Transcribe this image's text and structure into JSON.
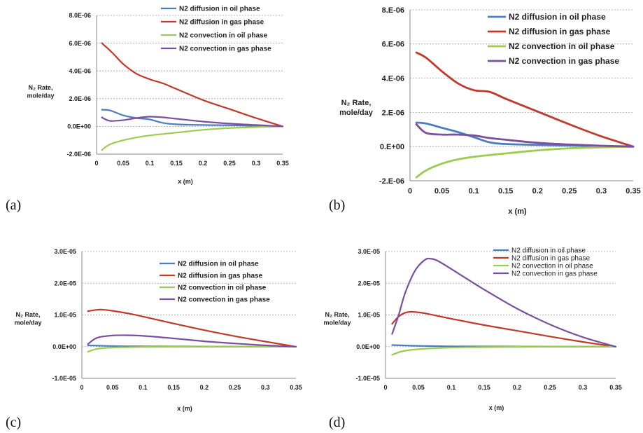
{
  "figure": {
    "panels": [
      {
        "label": "(a)"
      },
      {
        "label": "(b)"
      },
      {
        "label": "(c)"
      },
      {
        "label": "(d)"
      }
    ]
  },
  "colors": {
    "oil_diffusion": "#4a7ebf",
    "gas_diffusion": "#c0392b",
    "oil_convection": "#9bcb4f",
    "gas_convection": "#7b4fa0",
    "grid": "#a0a0a0",
    "axis": "#888888"
  },
  "chart_data": [
    {
      "panel": "(a)",
      "type": "line",
      "xlabel": "x (m)",
      "ylabel": [
        "N₂ Rate,",
        "mole/day"
      ],
      "xlim": [
        0,
        0.35
      ],
      "ylim": [
        -2e-06,
        8e-06
      ],
      "xticks": [
        0,
        0.05,
        0.1,
        0.15,
        0.2,
        0.25,
        0.3,
        0.35
      ],
      "xtick_labels": [
        "0",
        "0.05",
        "0.1",
        "0.15",
        "0.2",
        "0.25",
        "0.3",
        "0.35"
      ],
      "yticks": [
        -2e-06,
        0,
        2e-06,
        4e-06,
        6e-06,
        8e-06
      ],
      "ytick_labels": [
        "-2.0E-06",
        "0.0E+00",
        "2.0E-06",
        "4.0E-06",
        "6.0E-06",
        "8.0E-06"
      ],
      "grid": "horizontal dotted",
      "legend_position": "top-right",
      "series": [
        {
          "name": "N2 diffusion in oil phase",
          "x": [
            0.01,
            0.025,
            0.05,
            0.075,
            0.1,
            0.125,
            0.15,
            0.2,
            0.25,
            0.3,
            0.35
          ],
          "values": [
            1.2e-06,
            1.15e-06,
            8e-07,
            6e-07,
            5e-07,
            2.5e-07,
            1.5e-07,
            1e-07,
            8e-08,
            4e-08,
            0
          ]
        },
        {
          "name": "N2 diffusion in gas phase",
          "x": [
            0.01,
            0.03,
            0.05,
            0.075,
            0.1,
            0.125,
            0.15,
            0.2,
            0.25,
            0.3,
            0.35
          ],
          "values": [
            6e-06,
            5.3e-06,
            4.5e-06,
            3.8e-06,
            3.4e-06,
            3.1e-06,
            2.7e-06,
            1.9e-06,
            1.25e-06,
            6e-07,
            0
          ]
        },
        {
          "name": "N2 convection in oil phase",
          "x": [
            0.01,
            0.025,
            0.05,
            0.075,
            0.1,
            0.15,
            0.2,
            0.25,
            0.3,
            0.35
          ],
          "values": [
            -1.7e-06,
            -1.3e-06,
            -1e-06,
            -8e-07,
            -6.5e-07,
            -4.5e-07,
            -2.5e-07,
            -1.2e-07,
            -5e-08,
            0
          ]
        },
        {
          "name": "N2 convection in gas phase",
          "x": [
            0.01,
            0.025,
            0.05,
            0.075,
            0.1,
            0.125,
            0.15,
            0.2,
            0.25,
            0.3,
            0.35
          ],
          "values": [
            6.5e-07,
            4e-07,
            4.5e-07,
            6e-07,
            7e-07,
            6.5e-07,
            5.5e-07,
            3.5e-07,
            2e-07,
            1e-07,
            0
          ]
        }
      ]
    },
    {
      "panel": "(b)",
      "type": "line",
      "xlabel": "x (m)",
      "ylabel": [
        "N₂ Rate,",
        "mole/day"
      ],
      "xlim": [
        0,
        0.35
      ],
      "ylim": [
        -2e-06,
        8e-06
      ],
      "xticks": [
        0,
        0.05,
        0.1,
        0.15,
        0.2,
        0.25,
        0.3,
        0.35
      ],
      "xtick_labels": [
        "0",
        "0.05",
        "0.1",
        "0.15",
        "0.2",
        "0.25",
        "0.3",
        "0.35"
      ],
      "yticks": [
        -2e-06,
        0,
        2e-06,
        4e-06,
        6e-06,
        8e-06
      ],
      "ytick_labels": [
        "-2.E-06",
        "0.E+00",
        "2.E-06",
        "4.E-06",
        "6.E-06",
        "8.E-06"
      ],
      "grid": "horizontal dotted",
      "legend_position": "top-right",
      "series": [
        {
          "name": "N2 diffusion in oil phase",
          "x": [
            0.01,
            0.025,
            0.05,
            0.075,
            0.1,
            0.125,
            0.15,
            0.2,
            0.25,
            0.3,
            0.35
          ],
          "values": [
            1.4e-06,
            1.35e-06,
            1.1e-06,
            8.5e-07,
            5.5e-07,
            2.5e-07,
            1.5e-07,
            1e-07,
            6e-08,
            3e-08,
            0
          ]
        },
        {
          "name": "N2 diffusion in gas phase",
          "x": [
            0.01,
            0.025,
            0.05,
            0.075,
            0.1,
            0.125,
            0.15,
            0.2,
            0.25,
            0.3,
            0.35
          ],
          "values": [
            5.5e-06,
            5.2e-06,
            4.4e-06,
            3.7e-06,
            3.3e-06,
            3.2e-06,
            2.8e-06,
            2.05e-06,
            1.3e-06,
            6e-07,
            0
          ]
        },
        {
          "name": "N2 convection in oil phase",
          "x": [
            0.01,
            0.025,
            0.05,
            0.075,
            0.1,
            0.15,
            0.2,
            0.25,
            0.3,
            0.35
          ],
          "values": [
            -1.8e-06,
            -1.4e-06,
            -1e-06,
            -7.5e-07,
            -6e-07,
            -4e-07,
            -2.2e-07,
            -1e-07,
            -4e-08,
            0
          ]
        },
        {
          "name": "N2 convection in gas phase",
          "x": [
            0.01,
            0.025,
            0.05,
            0.075,
            0.1,
            0.125,
            0.15,
            0.2,
            0.25,
            0.3,
            0.35
          ],
          "values": [
            1.3e-06,
            8e-07,
            7e-07,
            7e-07,
            6.5e-07,
            5e-07,
            4e-07,
            2.2e-07,
            1.2e-07,
            5e-08,
            0
          ]
        }
      ]
    },
    {
      "panel": "(c)",
      "type": "line",
      "xlabel": "x (m)",
      "ylabel": [
        "N₂ Rate,",
        "mole/day"
      ],
      "xlim": [
        0,
        0.35
      ],
      "ylim": [
        -1e-05,
        3e-05
      ],
      "xticks": [
        0,
        0.05,
        0.1,
        0.15,
        0.2,
        0.25,
        0.3,
        0.35
      ],
      "xtick_labels": [
        "0",
        "0.05",
        "0.1",
        "0.15",
        "0.2",
        "0.25",
        "0.3",
        "0.35"
      ],
      "yticks": [
        -1e-05,
        0,
        1e-05,
        2e-05,
        3e-05
      ],
      "ytick_labels": [
        "-1.0E-05",
        "0.0E+00",
        "1.0E-05",
        "2.0E-05",
        "3.0E-05"
      ],
      "grid": "horizontal dotted",
      "legend_position": "top-right",
      "series": [
        {
          "name": "N2 diffusion in oil phase",
          "x": [
            0.01,
            0.05,
            0.1,
            0.15,
            0.2,
            0.25,
            0.3,
            0.35
          ],
          "values": [
            4e-07,
            2e-07,
            1e-07,
            6e-08,
            4e-08,
            2e-08,
            1e-08,
            0
          ]
        },
        {
          "name": "N2 diffusion in gas phase",
          "x": [
            0.01,
            0.03,
            0.05,
            0.075,
            0.1,
            0.15,
            0.2,
            0.25,
            0.3,
            0.35
          ],
          "values": [
            1.12e-05,
            1.17e-05,
            1.13e-05,
            1.05e-05,
            9.5e-06,
            7.3e-06,
            5.2e-06,
            3.3e-06,
            1.6e-06,
            0
          ]
        },
        {
          "name": "N2 convection in oil phase",
          "x": [
            0.01,
            0.025,
            0.05,
            0.1,
            0.15,
            0.2,
            0.25,
            0.3,
            0.35
          ],
          "values": [
            -1.6e-06,
            -7e-07,
            -3e-07,
            -1e-07,
            -5e-08,
            -3e-08,
            -2e-08,
            -1e-08,
            0
          ]
        },
        {
          "name": "N2 convection in gas phase",
          "x": [
            0.01,
            0.025,
            0.05,
            0.075,
            0.1,
            0.15,
            0.2,
            0.25,
            0.3,
            0.35
          ],
          "values": [
            8e-07,
            2.8e-06,
            3.5e-06,
            3.6e-06,
            3.4e-06,
            2.6e-06,
            1.7e-06,
            1e-06,
            4e-07,
            0
          ]
        }
      ]
    },
    {
      "panel": "(d)",
      "type": "line",
      "xlabel": "x (m)",
      "ylabel": [
        "N₂ Rate,",
        "mole/day"
      ],
      "xlim": [
        0,
        0.35
      ],
      "ylim": [
        -1e-05,
        3e-05
      ],
      "xticks": [
        0,
        0.05,
        0.1,
        0.15,
        0.2,
        0.25,
        0.3,
        0.35
      ],
      "xtick_labels": [
        "0",
        "0.05",
        "0.1",
        "0.15",
        "0.2",
        "0.25",
        "0.3",
        "0.35"
      ],
      "yticks": [
        -1e-05,
        0,
        1e-05,
        2e-05,
        3e-05
      ],
      "ytick_labels": [
        "-1.0E-05",
        "0.0E+00",
        "1.0E-05",
        "2.0E-05",
        "3.0E-05"
      ],
      "grid": "horizontal dotted",
      "legend_position": "top-right",
      "series": [
        {
          "name": "N2 diffusion in oil phase",
          "x": [
            0.01,
            0.05,
            0.1,
            0.15,
            0.2,
            0.25,
            0.3,
            0.35
          ],
          "values": [
            5e-07,
            2.5e-07,
            1e-07,
            6e-08,
            4e-08,
            2e-08,
            1e-08,
            0
          ]
        },
        {
          "name": "N2 diffusion in gas phase",
          "x": [
            0.01,
            0.02,
            0.03,
            0.04,
            0.06,
            0.1,
            0.15,
            0.2,
            0.25,
            0.3,
            0.35
          ],
          "values": [
            7.2e-06,
            9.5e-06,
            1.07e-05,
            1.1e-05,
            1.05e-05,
            8.8e-06,
            6.8e-06,
            5e-06,
            3.2e-06,
            1.5e-06,
            0
          ]
        },
        {
          "name": "N2 convection in oil phase",
          "x": [
            0.01,
            0.025,
            0.05,
            0.1,
            0.15,
            0.2,
            0.25,
            0.3,
            0.35
          ],
          "values": [
            -2.6e-06,
            -1.5e-06,
            -8e-07,
            -3e-07,
            -1.5e-07,
            -8e-08,
            -4e-08,
            -2e-08,
            0
          ]
        },
        {
          "name": "N2 convection in gas phase",
          "x": [
            0.01,
            0.02,
            0.03,
            0.045,
            0.06,
            0.07,
            0.08,
            0.1,
            0.15,
            0.2,
            0.25,
            0.3,
            0.35
          ],
          "values": [
            4e-06,
            1e-05,
            1.7e-05,
            2.4e-05,
            2.74e-05,
            2.77e-05,
            2.7e-05,
            2.45e-05,
            1.8e-05,
            1.2e-05,
            7e-06,
            3e-06,
            0
          ]
        }
      ]
    }
  ]
}
